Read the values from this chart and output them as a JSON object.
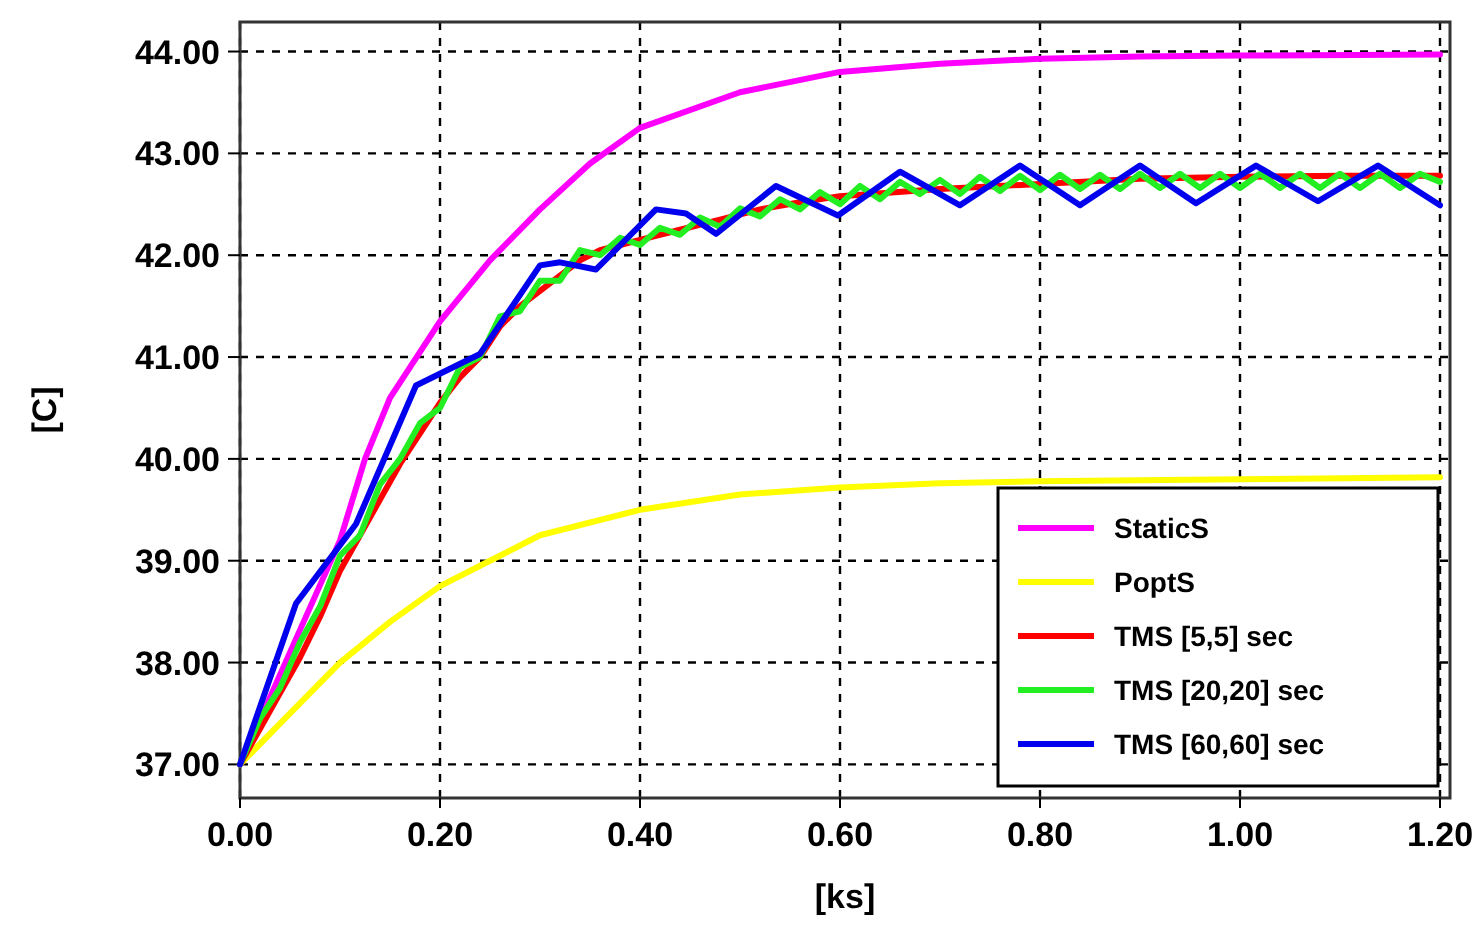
{
  "chart_data": {
    "type": "line",
    "xlabel": "[ks]",
    "ylabel": "[C]",
    "xlim": [
      0,
      1.21
    ],
    "ylim": [
      36.67,
      44.29
    ],
    "xticks": [
      {
        "value": 0,
        "label": "0.00"
      },
      {
        "value": 0.2,
        "label": "0.20"
      },
      {
        "value": 0.4,
        "label": "0.40"
      },
      {
        "value": 0.6,
        "label": "0.60"
      },
      {
        "value": 0.8,
        "label": "0.80"
      },
      {
        "value": 1.0,
        "label": "1.00"
      },
      {
        "value": 1.2,
        "label": "1.20"
      }
    ],
    "yticks": [
      {
        "value": 37,
        "label": "37.00"
      },
      {
        "value": 38,
        "label": "38.00"
      },
      {
        "value": 39,
        "label": "39.00"
      },
      {
        "value": 40,
        "label": "40.00"
      },
      {
        "value": 41,
        "label": "41.00"
      },
      {
        "value": 42,
        "label": "42.00"
      },
      {
        "value": 43,
        "label": "43.00"
      },
      {
        "value": 44,
        "label": "44.00"
      }
    ],
    "grid": true,
    "legend": "bottom right",
    "marker": "none",
    "line_style": "solid",
    "series": [
      {
        "name": "StaticS",
        "color": "#ff00ff",
        "x": [
          0,
          0.05,
          0.1,
          0.125,
          0.15,
          0.2,
          0.25,
          0.3,
          0.35,
          0.4,
          0.5,
          0.6,
          0.7,
          0.8,
          0.9,
          1.0,
          1.2
        ],
        "values": [
          37,
          38.1,
          39.2,
          40.0,
          40.6,
          41.35,
          41.95,
          42.45,
          42.9,
          43.25,
          43.6,
          43.8,
          43.88,
          43.93,
          43.95,
          43.96,
          43.97
        ]
      },
      {
        "name": "PoptS",
        "color": "#ffff00",
        "x": [
          0,
          0.05,
          0.1,
          0.15,
          0.2,
          0.25,
          0.3,
          0.4,
          0.5,
          0.6,
          0.7,
          0.8,
          1.0,
          1.2
        ],
        "values": [
          37,
          37.5,
          38.0,
          38.4,
          38.75,
          39.0,
          39.25,
          39.5,
          39.65,
          39.72,
          39.76,
          39.78,
          39.8,
          39.82
        ]
      },
      {
        "name": "TMS [5,5] sec",
        "color": "#ff0000",
        "x": [
          0,
          0.02,
          0.04,
          0.06,
          0.08,
          0.1,
          0.12,
          0.14,
          0.16,
          0.18,
          0.2,
          0.22,
          0.24,
          0.26,
          0.28,
          0.3,
          0.32,
          0.34,
          0.36,
          0.38,
          0.4,
          0.44,
          0.48,
          0.52,
          0.56,
          0.6,
          0.7,
          0.8,
          0.9,
          1.0,
          1.1,
          1.2
        ],
        "values": [
          37,
          37.35,
          37.7,
          38.05,
          38.45,
          38.9,
          39.25,
          39.6,
          39.95,
          40.25,
          40.55,
          40.8,
          41.0,
          41.3,
          41.5,
          41.65,
          41.8,
          41.95,
          42.05,
          42.1,
          42.15,
          42.25,
          42.35,
          42.45,
          42.52,
          42.58,
          42.65,
          42.7,
          42.75,
          42.77,
          42.78,
          42.78
        ]
      },
      {
        "name": "TMS [20,20] sec",
        "color": "#22ee22",
        "x": [
          0,
          0.02,
          0.04,
          0.06,
          0.08,
          0.1,
          0.12,
          0.14,
          0.16,
          0.18,
          0.2,
          0.22,
          0.24,
          0.26,
          0.28,
          0.3,
          0.32,
          0.34,
          0.36,
          0.38,
          0.4,
          0.42,
          0.44,
          0.46,
          0.48,
          0.5,
          0.52,
          0.54,
          0.56,
          0.58,
          0.6,
          0.62,
          0.64,
          0.66,
          0.68,
          0.7,
          0.72,
          0.74,
          0.76,
          0.78,
          0.8,
          0.82,
          0.84,
          0.86,
          0.88,
          0.9,
          0.92,
          0.94,
          0.96,
          0.98,
          1.0,
          1.02,
          1.04,
          1.06,
          1.08,
          1.1,
          1.12,
          1.14,
          1.16,
          1.18,
          1.2
        ],
        "values": [
          37,
          37.45,
          37.75,
          38.2,
          38.55,
          39.05,
          39.25,
          39.75,
          40.0,
          40.35,
          40.5,
          40.9,
          41.0,
          41.4,
          41.45,
          41.75,
          41.75,
          42.05,
          42.0,
          42.17,
          42.1,
          42.27,
          42.2,
          42.37,
          42.28,
          42.46,
          42.38,
          42.55,
          42.45,
          42.62,
          42.5,
          42.68,
          42.55,
          42.72,
          42.6,
          42.74,
          42.6,
          42.77,
          42.63,
          42.78,
          42.64,
          42.79,
          42.65,
          42.79,
          42.65,
          42.8,
          42.66,
          42.8,
          42.66,
          42.8,
          42.66,
          42.8,
          42.66,
          42.8,
          42.66,
          42.8,
          42.66,
          42.8,
          42.66,
          42.8,
          42.72
        ]
      },
      {
        "name": "TMS [60,60] sec",
        "color": "#0000ee",
        "x": [
          0,
          0.056,
          0.116,
          0.176,
          0.24,
          0.3,
          0.32,
          0.356,
          0.416,
          0.446,
          0.476,
          0.536,
          0.598,
          0.66,
          0.72,
          0.78,
          0.84,
          0.9,
          0.956,
          1.016,
          1.078,
          1.138,
          1.2
        ],
        "values": [
          37,
          38.58,
          39.36,
          40.72,
          41.03,
          41.9,
          41.93,
          41.86,
          42.45,
          42.41,
          42.21,
          42.68,
          42.39,
          42.82,
          42.49,
          42.88,
          42.49,
          42.88,
          42.51,
          42.88,
          42.53,
          42.88,
          42.49
        ]
      }
    ]
  }
}
